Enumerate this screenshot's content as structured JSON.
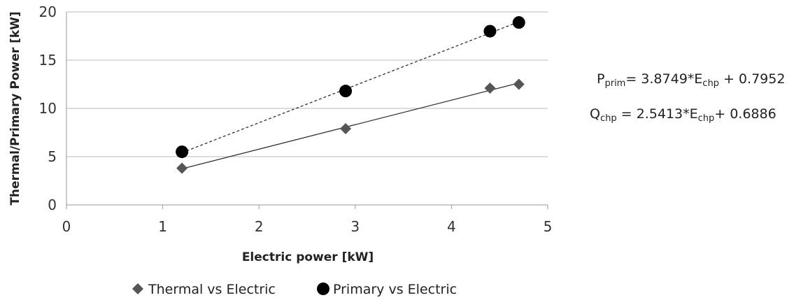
{
  "chart_data": {
    "type": "scatter",
    "xlabel": "Electric power [kW]",
    "ylabel": "Thermal/Primary Power [kW]",
    "xlim": [
      0,
      5
    ],
    "ylim": [
      0,
      20
    ],
    "xticks": [
      "0",
      "1",
      "2",
      "3",
      "4",
      "5"
    ],
    "yticks": [
      "0",
      "5",
      "10",
      "15",
      "20"
    ],
    "grid": "horizontal",
    "legend_position": "bottom",
    "series": [
      {
        "name": "Thermal vs Electric",
        "marker": "diamond",
        "color": "#555555",
        "trendline": "solid",
        "points": [
          {
            "x": 1.2,
            "y": 3.8
          },
          {
            "x": 2.9,
            "y": 7.9
          },
          {
            "x": 4.4,
            "y": 12.1
          },
          {
            "x": 4.7,
            "y": 12.5
          }
        ]
      },
      {
        "name": "Primary vs Electric",
        "marker": "circle",
        "color": "#000000",
        "trendline": "dashed",
        "points": [
          {
            "x": 1.2,
            "y": 5.5
          },
          {
            "x": 2.9,
            "y": 11.8
          },
          {
            "x": 4.4,
            "y": 18.0
          },
          {
            "x": 4.7,
            "y": 18.9
          }
        ]
      }
    ],
    "annotations": {
      "primary_eq": {
        "lhs": "P",
        "lhs_sub": "prim",
        "mid": "= 3.8749*E",
        "mid_sub": "chp",
        "rhs": " + 0.7952"
      },
      "thermal_eq": {
        "lhs": "Q",
        "lhs_sub": "chp",
        "mid": " = 2.5413*E",
        "mid_sub": "chp",
        "rhs": "+ 0.6886"
      }
    }
  }
}
